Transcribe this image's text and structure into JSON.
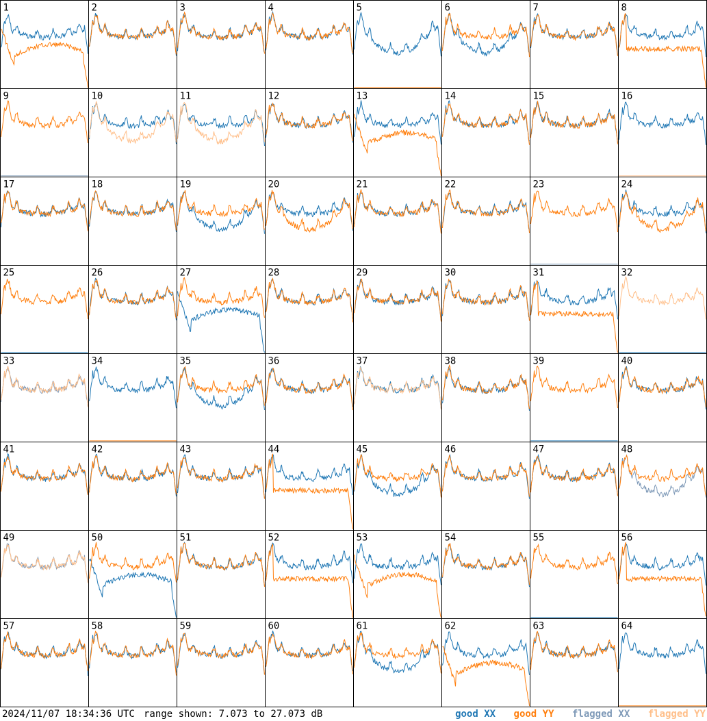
{
  "page": {
    "timestamp": "2024/11/07 18:34:36 UTC",
    "range_text": "range shown: 7.073 to 27.073 dB"
  },
  "legend": {
    "good_xx": "good XX",
    "good_yy": "good YY",
    "flagged_xx": "flagged XX",
    "flagged_yy": "flagged YY"
  },
  "colors": {
    "good_xx": "#1f77b4",
    "good_yy": "#ff7f0e",
    "flagged_xx": "#7f9ab8",
    "flagged_yy": "#ffbf8a"
  },
  "chart_data": {
    "type": "line",
    "grid": {
      "rows": 8,
      "cols": 8
    },
    "ylim": [
      7.073,
      27.073
    ],
    "units": "dB",
    "panels": [
      {
        "id": "1",
        "xx": "good",
        "yy": "good",
        "xx_shape": "normal",
        "yy_shape": "low"
      },
      {
        "id": "2",
        "xx": "good",
        "yy": "good",
        "xx_shape": "normal",
        "yy_shape": "normal"
      },
      {
        "id": "3",
        "xx": "good",
        "yy": "good",
        "xx_shape": "normal",
        "yy_shape": "normal"
      },
      {
        "id": "4",
        "xx": "good",
        "yy": "good",
        "xx_shape": "normal",
        "yy_shape": "normal"
      },
      {
        "id": "5",
        "xx": "good",
        "yy": "good",
        "xx_shape": "dip",
        "yy_shape": "dead"
      },
      {
        "id": "6",
        "xx": "good",
        "yy": "good",
        "xx_shape": "dip",
        "yy_shape": "normal"
      },
      {
        "id": "7",
        "xx": "good",
        "yy": "good",
        "xx_shape": "normal",
        "yy_shape": "normal"
      },
      {
        "id": "8",
        "xx": "good",
        "yy": "good",
        "xx_shape": "normal",
        "yy_shape": "flat"
      },
      {
        "id": "9",
        "xx": "flagged",
        "yy": "good",
        "xx_shape": "dead",
        "yy_shape": "normal"
      },
      {
        "id": "10",
        "xx": "good",
        "yy": "flagged",
        "xx_shape": "normal",
        "yy_shape": "dip"
      },
      {
        "id": "11",
        "xx": "good",
        "yy": "flagged",
        "xx_shape": "normal",
        "yy_shape": "dip"
      },
      {
        "id": "12",
        "xx": "good",
        "yy": "good",
        "xx_shape": "normal",
        "yy_shape": "normal"
      },
      {
        "id": "13",
        "xx": "good",
        "yy": "good",
        "xx_shape": "normal",
        "yy_shape": "low"
      },
      {
        "id": "14",
        "xx": "good",
        "yy": "good",
        "xx_shape": "normal",
        "yy_shape": "normal"
      },
      {
        "id": "15",
        "xx": "good",
        "yy": "good",
        "xx_shape": "normal",
        "yy_shape": "normal"
      },
      {
        "id": "16",
        "xx": "good",
        "yy": "flagged",
        "xx_shape": "normal",
        "yy_shape": "dead"
      },
      {
        "id": "17",
        "xx": "good",
        "yy": "good",
        "xx_shape": "normal",
        "yy_shape": "normal"
      },
      {
        "id": "18",
        "xx": "good",
        "yy": "good",
        "xx_shape": "normal",
        "yy_shape": "normal"
      },
      {
        "id": "19",
        "xx": "good",
        "yy": "good",
        "xx_shape": "dip",
        "yy_shape": "normal"
      },
      {
        "id": "20",
        "xx": "good",
        "yy": "good",
        "xx_shape": "normal",
        "yy_shape": "dip"
      },
      {
        "id": "21",
        "xx": "good",
        "yy": "good",
        "xx_shape": "normal",
        "yy_shape": "normal"
      },
      {
        "id": "22",
        "xx": "good",
        "yy": "good",
        "xx_shape": "normal",
        "yy_shape": "normal"
      },
      {
        "id": "23",
        "xx": "flagged",
        "yy": "good",
        "xx_shape": "dead",
        "yy_shape": "normal"
      },
      {
        "id": "24",
        "xx": "good",
        "yy": "good",
        "xx_shape": "normal",
        "yy_shape": "dip"
      },
      {
        "id": "25",
        "xx": "good",
        "yy": "good",
        "xx_shape": "dead",
        "yy_shape": "normal"
      },
      {
        "id": "26",
        "xx": "good",
        "yy": "good",
        "xx_shape": "normal",
        "yy_shape": "normal"
      },
      {
        "id": "27",
        "xx": "good",
        "yy": "good",
        "xx_shape": "low",
        "yy_shape": "normal"
      },
      {
        "id": "28",
        "xx": "good",
        "yy": "good",
        "xx_shape": "normal",
        "yy_shape": "normal"
      },
      {
        "id": "29",
        "xx": "good",
        "yy": "good",
        "xx_shape": "normal",
        "yy_shape": "normal"
      },
      {
        "id": "30",
        "xx": "good",
        "yy": "good",
        "xx_shape": "normal",
        "yy_shape": "normal"
      },
      {
        "id": "31",
        "xx": "good",
        "yy": "good",
        "xx_shape": "normal",
        "yy_shape": "flat"
      },
      {
        "id": "32",
        "xx": "good",
        "yy": "flagged",
        "xx_shape": "dead",
        "yy_shape": "normal"
      },
      {
        "id": "33",
        "xx": "flagged",
        "yy": "flagged",
        "xx_shape": "normal",
        "yy_shape": "normal"
      },
      {
        "id": "34",
        "xx": "good",
        "yy": "good",
        "xx_shape": "normal",
        "yy_shape": "dead"
      },
      {
        "id": "35",
        "xx": "good",
        "yy": "good",
        "xx_shape": "dip",
        "yy_shape": "normal"
      },
      {
        "id": "36",
        "xx": "good",
        "yy": "good",
        "xx_shape": "normal",
        "yy_shape": "normal"
      },
      {
        "id": "37",
        "xx": "good",
        "yy": "flagged",
        "xx_shape": "normal",
        "yy_shape": "normal"
      },
      {
        "id": "38",
        "xx": "good",
        "yy": "good",
        "xx_shape": "normal",
        "yy_shape": "normal"
      },
      {
        "id": "39",
        "xx": "good",
        "yy": "good",
        "xx_shape": "dead",
        "yy_shape": "normal"
      },
      {
        "id": "40",
        "xx": "good",
        "yy": "good",
        "xx_shape": "normal",
        "yy_shape": "normal"
      },
      {
        "id": "41",
        "xx": "good",
        "yy": "good",
        "xx_shape": "normal",
        "yy_shape": "normal"
      },
      {
        "id": "42",
        "xx": "good",
        "yy": "good",
        "xx_shape": "normal",
        "yy_shape": "normal"
      },
      {
        "id": "43",
        "xx": "good",
        "yy": "good",
        "xx_shape": "normal",
        "yy_shape": "normal"
      },
      {
        "id": "44",
        "xx": "good",
        "yy": "good",
        "xx_shape": "normal",
        "yy_shape": "flat"
      },
      {
        "id": "45",
        "xx": "good",
        "yy": "good",
        "xx_shape": "dip",
        "yy_shape": "normal"
      },
      {
        "id": "46",
        "xx": "good",
        "yy": "good",
        "xx_shape": "normal",
        "yy_shape": "normal"
      },
      {
        "id": "47",
        "xx": "good",
        "yy": "good",
        "xx_shape": "normal",
        "yy_shape": "normal"
      },
      {
        "id": "48",
        "xx": "flagged",
        "yy": "good",
        "xx_shape": "dip",
        "yy_shape": "normal"
      },
      {
        "id": "49",
        "xx": "flagged",
        "yy": "flagged",
        "xx_shape": "normal",
        "yy_shape": "normal"
      },
      {
        "id": "50",
        "xx": "good",
        "yy": "good",
        "xx_shape": "low",
        "yy_shape": "normal"
      },
      {
        "id": "51",
        "xx": "good",
        "yy": "good",
        "xx_shape": "normal",
        "yy_shape": "normal"
      },
      {
        "id": "52",
        "xx": "good",
        "yy": "good",
        "xx_shape": "normal",
        "yy_shape": "flat"
      },
      {
        "id": "53",
        "xx": "good",
        "yy": "good",
        "xx_shape": "normal",
        "yy_shape": "low"
      },
      {
        "id": "54",
        "xx": "good",
        "yy": "good",
        "xx_shape": "normal",
        "yy_shape": "normal"
      },
      {
        "id": "55",
        "xx": "good",
        "yy": "good",
        "xx_shape": "dead",
        "yy_shape": "normal"
      },
      {
        "id": "56",
        "xx": "good",
        "yy": "good",
        "xx_shape": "normal",
        "yy_shape": "flat"
      },
      {
        "id": "57",
        "xx": "good",
        "yy": "good",
        "xx_shape": "normal",
        "yy_shape": "normal"
      },
      {
        "id": "58",
        "xx": "good",
        "yy": "good",
        "xx_shape": "normal",
        "yy_shape": "normal"
      },
      {
        "id": "59",
        "xx": "good",
        "yy": "good",
        "xx_shape": "normal",
        "yy_shape": "normal"
      },
      {
        "id": "60",
        "xx": "good",
        "yy": "good",
        "xx_shape": "normal",
        "yy_shape": "normal"
      },
      {
        "id": "61",
        "xx": "good",
        "yy": "good",
        "xx_shape": "dip",
        "yy_shape": "normal"
      },
      {
        "id": "62",
        "xx": "good",
        "yy": "good",
        "xx_shape": "normal",
        "yy_shape": "low"
      },
      {
        "id": "63",
        "xx": "good",
        "yy": "good",
        "xx_shape": "normal",
        "yy_shape": "normal"
      },
      {
        "id": "64",
        "xx": "good",
        "yy": "good",
        "xx_shape": "normal",
        "yy_shape": "dead"
      }
    ]
  }
}
